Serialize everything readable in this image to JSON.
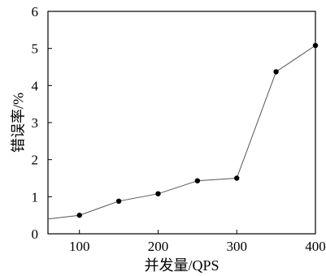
{
  "chart_data": {
    "type": "line",
    "title": "",
    "xlabel": "并发量/QPS",
    "ylabel": "错误率/%",
    "xlim": [
      60,
      400
    ],
    "ylim": [
      0,
      6
    ],
    "xticks": [
      100,
      200,
      300,
      400
    ],
    "yticks": [
      0,
      1,
      2,
      3,
      4,
      5,
      6
    ],
    "grid": false,
    "series": [
      {
        "x": [
          60,
          100,
          150,
          200,
          250,
          300,
          350,
          400
        ],
        "y": [
          0.4,
          0.5,
          0.88,
          1.08,
          1.43,
          1.5,
          4.37,
          5.08
        ],
        "markers": [
          false,
          true,
          true,
          true,
          true,
          true,
          true,
          true
        ]
      }
    ]
  }
}
